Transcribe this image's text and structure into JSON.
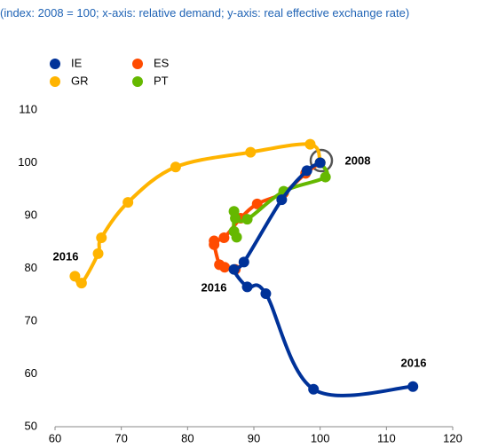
{
  "chart_data": {
    "type": "line",
    "subtitle": "(index: 2008 = 100; x-axis: relative demand; y-axis: real effective exchange rate)",
    "series": [
      {
        "name": "IE",
        "color": "#003299",
        "x": [
          100,
          98,
          94.2,
          88.5,
          87,
          89,
          91.8,
          99,
          114
        ],
        "y": [
          100,
          98.5,
          93,
          81.2,
          79.8,
          76.5,
          75.2,
          57.1,
          57.6
        ]
      },
      {
        "name": "GR",
        "color": "#ffb400",
        "x": [
          100,
          98.5,
          89.5,
          78.2,
          71,
          67,
          66.5,
          64,
          63
        ],
        "y": [
          100,
          103.5,
          102,
          99.2,
          92.5,
          85.8,
          82.8,
          77.2,
          78.5
        ]
      },
      {
        "name": "ES",
        "color": "#ff4b00",
        "x": [
          100,
          97.8,
          94.5,
          90.5,
          88,
          85.5,
          84,
          84,
          84.8,
          85.6,
          87.2
        ],
        "y": [
          100,
          98,
          94.3,
          92.2,
          89.5,
          85.8,
          85.2,
          84.5,
          80.7,
          80.2,
          79.8
        ]
      },
      {
        "name": "PT",
        "color": "#65b800",
        "x": [
          100,
          100.8,
          94.5,
          89,
          87.2,
          87,
          87,
          87.4
        ],
        "y": [
          100,
          97.3,
          94.6,
          89.3,
          89.5,
          90.8,
          87,
          85.9
        ]
      }
    ],
    "annotations": [
      "2016",
      "2016",
      "2016",
      "2008"
    ],
    "xlim": [
      60,
      120
    ],
    "xticks": [
      60,
      70,
      80,
      90,
      100,
      110,
      120
    ],
    "ylim": [
      50,
      110
    ],
    "yticks": [
      50,
      60,
      70,
      80,
      90,
      100,
      110
    ],
    "grid": false
  }
}
